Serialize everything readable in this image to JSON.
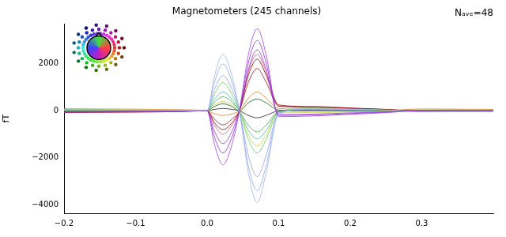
{
  "chart_data": {
    "type": "line",
    "title": "Magnetometers (245 channels)",
    "annotation": "Nₐᵥₑ=48",
    "y_label": "fT",
    "x": [
      -0.2,
      -0.15,
      -0.1,
      -0.05,
      0,
      0.01,
      0.022,
      0.035,
      0.045,
      0.058,
      0.07,
      0.082,
      0.1,
      0.15,
      0.2,
      0.25,
      0.3,
      0.35,
      0.4
    ],
    "series": [
      {
        "color": "#a0b4f0",
        "values": [
          40,
          30,
          20,
          10,
          0,
          1450,
          2400,
          1450,
          0,
          -2700,
          -3900,
          -2700,
          -150,
          100,
          60,
          30,
          -50,
          -40,
          -30
        ]
      },
      {
        "color": "#a040e0",
        "values": [
          -60,
          -50,
          -40,
          -30,
          0,
          -1400,
          -2300,
          -1400,
          0,
          2450,
          3500,
          2450,
          -250,
          -220,
          -150,
          -80,
          20,
          30,
          20
        ]
      },
      {
        "color": "#8a2be2",
        "values": [
          -50,
          -40,
          -30,
          -20,
          0,
          -1100,
          -1800,
          -1100,
          0,
          2100,
          3000,
          2100,
          -200,
          -180,
          -120,
          -60,
          10,
          20,
          10
        ]
      },
      {
        "color": "#9b30d0",
        "values": [
          -40,
          -30,
          -20,
          -20,
          0,
          -850,
          -1400,
          -850,
          0,
          1800,
          2600,
          1800,
          -150,
          -140,
          -90,
          -50,
          10,
          10,
          10
        ]
      },
      {
        "color": "#90a8f0",
        "values": [
          30,
          30,
          20,
          10,
          0,
          1200,
          2000,
          1200,
          0,
          -2400,
          -3400,
          -2400,
          -100,
          80,
          50,
          20,
          -40,
          -30,
          -20
        ]
      },
      {
        "color": "#8fa0e8",
        "values": [
          30,
          20,
          20,
          10,
          0,
          900,
          1500,
          900,
          0,
          -1950,
          -2800,
          -1950,
          -80,
          60,
          40,
          20,
          -30,
          -20,
          -20
        ]
      },
      {
        "color": "#60d060",
        "values": [
          50,
          40,
          30,
          20,
          0,
          700,
          1200,
          700,
          0,
          -1250,
          -1800,
          -1250,
          -50,
          120,
          80,
          40,
          -20,
          -10,
          -10
        ]
      },
      {
        "color": "#8b0000",
        "values": [
          -70,
          -60,
          -50,
          -40,
          0,
          -500,
          -800,
          -500,
          0,
          1550,
          2200,
          1550,
          250,
          180,
          120,
          60,
          -20,
          -30,
          -20
        ]
      },
      {
        "color": "#a01010",
        "values": [
          -50,
          -40,
          -30,
          -30,
          0,
          -350,
          -600,
          -350,
          0,
          1250,
          1800,
          1250,
          200,
          150,
          100,
          50,
          -10,
          -20,
          -10
        ]
      },
      {
        "color": "#c8d040",
        "values": [
          60,
          50,
          40,
          30,
          0,
          250,
          400,
          250,
          0,
          -1050,
          -1500,
          -1050,
          -60,
          -80,
          -50,
          -30,
          50,
          40,
          30
        ]
      },
      {
        "color": "#e08020",
        "values": [
          90,
          80,
          70,
          50,
          0,
          -120,
          -200,
          -120,
          0,
          550,
          800,
          550,
          100,
          60,
          40,
          20,
          80,
          70,
          60
        ]
      },
      {
        "color": "#40c0a0",
        "values": [
          20,
          20,
          10,
          10,
          0,
          480,
          800,
          480,
          0,
          -850,
          -1200,
          -850,
          -40,
          30,
          20,
          10,
          -10,
          -10,
          -10
        ]
      },
      {
        "color": "#006400",
        "values": [
          -20,
          -20,
          -10,
          -10,
          0,
          180,
          300,
          180,
          0,
          350,
          500,
          350,
          30,
          20,
          10,
          10,
          0,
          0,
          0
        ]
      },
      {
        "color": "#202020",
        "values": [
          10,
          10,
          10,
          0,
          0,
          60,
          100,
          60,
          0,
          -200,
          -300,
          -200,
          -10,
          0,
          0,
          0,
          0,
          0,
          0
        ]
      },
      {
        "color": "#e05080",
        "values": [
          -80,
          -70,
          -60,
          -40,
          0,
          -600,
          -1000,
          -600,
          0,
          1700,
          2400,
          1700,
          200,
          160,
          110,
          60,
          -30,
          -30,
          -20
        ]
      },
      {
        "color": "#50a050",
        "values": [
          40,
          30,
          20,
          10,
          0,
          360,
          600,
          360,
          0,
          -630,
          -900,
          -630,
          -30,
          40,
          30,
          10,
          -20,
          -10,
          -10
        ]
      }
    ],
    "xlim": [
      -0.2,
      0.4
    ],
    "xticks": [
      {
        "value": -0.2,
        "label": "−0.2"
      },
      {
        "value": -0.1,
        "label": "−0.1"
      },
      {
        "value": 0,
        "label": "0.0"
      },
      0.1,
      0.2,
      0.3
    ],
    "ylim": [
      -4370,
      3700
    ],
    "yticks": [
      {
        "value": -4000,
        "label": "−4000"
      },
      {
        "value": -2000,
        "label": "−2000"
      },
      0,
      2000
    ],
    "grid": false,
    "tick_labels": true
  }
}
